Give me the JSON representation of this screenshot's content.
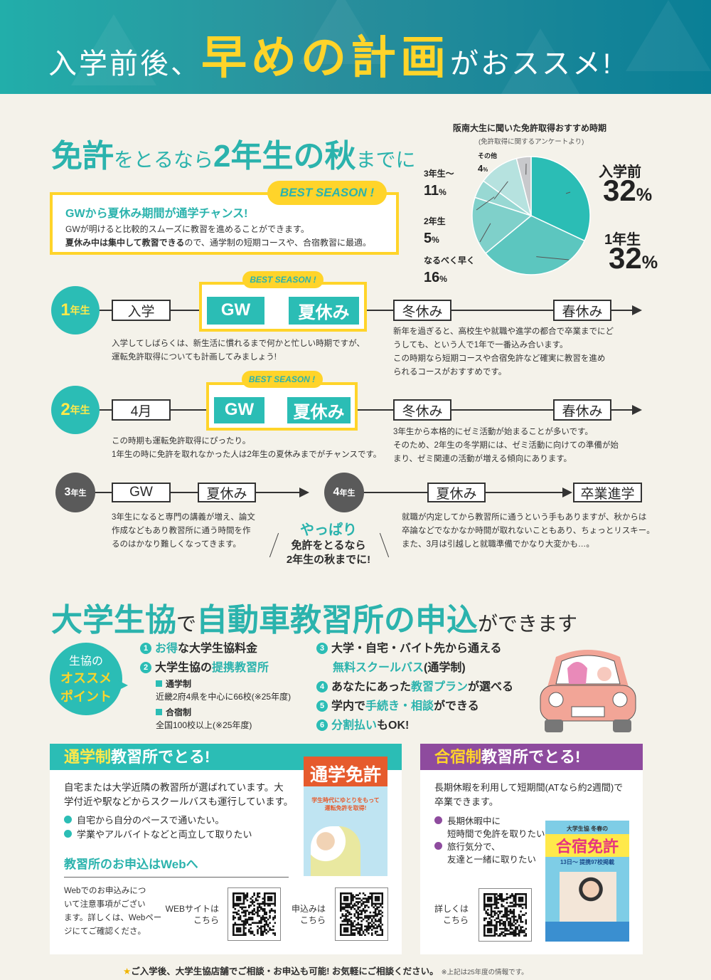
{
  "header": {
    "pre": "入学前後、",
    "highlight": "早めの計画",
    "post": "がおススメ!"
  },
  "section1": {
    "title_parts": [
      "免許",
      "をとるなら",
      "2年生の秋",
      "までに"
    ],
    "best_box": {
      "badge": "BEST SEASON !",
      "headline": "GWから夏休み期間が通学チャンス!",
      "line1": "GWが明けると比較的スムーズに教習を進めることができます。",
      "line2_bold": "夏休み中は集中して教習できる",
      "line2_rest": "ので、通学制の短期コースや、合宿教習に最適。"
    }
  },
  "chart_data": {
    "type": "pie",
    "title": "阪南大生に聞いた免許取得おすすめ時期",
    "subtitle": "(免許取得に関するアンケートより)",
    "unit": "%",
    "slices": [
      {
        "label": "入学前",
        "value": 32,
        "color": "#2bbdb5"
      },
      {
        "label": "1年生",
        "value": 32,
        "color": "#5cc6bf"
      },
      {
        "label": "なるべく早く",
        "value": 16,
        "color": "#7fd0ca"
      },
      {
        "label": "2年生",
        "value": 5,
        "color": "#98d8d3"
      },
      {
        "label": "3年生〜",
        "value": 11,
        "color": "#b6e2df"
      },
      {
        "label": "その他",
        "value": 4,
        "color": "#c8c9cc"
      }
    ]
  },
  "timeline": {
    "best_badge": "BEST SEASON !",
    "year1": {
      "num": "1",
      "suffix": "年生",
      "items": [
        "入学",
        "GW",
        "夏休み",
        "冬休み",
        "春休み"
      ],
      "note_left": [
        "入学してしばらくは、新生活に慣れるまで何かと忙しい時期ですが、",
        "運転免許取得についても計画してみましょう!"
      ],
      "note_right": [
        "新年を過ぎると、高校生や就職や進学の都合で卒業までにど",
        "うしても、という人で1年で一番込み合います。",
        "この時期なら短期コースや合宿免許など確実に教習を進め",
        "られるコースがおすすめです。"
      ]
    },
    "year2": {
      "num": "2",
      "suffix": "年生",
      "items": [
        "4月",
        "GW",
        "夏休み",
        "冬休み",
        "春休み"
      ],
      "note_left": [
        "この時期も運転免許取得にぴったり。",
        "1年生の時に免許を取れなかった人は2年生の夏休みまでがチャンスです。"
      ],
      "note_right": [
        "3年生から本格的にゼミ活動が始まることが多いです。",
        "そのため、2年生の冬学期には、ゼミ活動に向けての準備が始",
        "まり、ゼミ関連の活動が増える傾向にあります。"
      ]
    },
    "year3": {
      "num": "3",
      "suffix": "年生",
      "items": [
        "GW",
        "夏休み"
      ],
      "note": [
        "3年生になると専門の講義が増え、論文",
        "作成などもあり教習所に通う時間を作",
        "るのはかなり難しくなってきます。"
      ]
    },
    "year4": {
      "num": "4",
      "suffix": "年生",
      "items": [
        "夏休み",
        "卒業進学"
      ],
      "note": [
        "就職が内定してから教習所に通うという手もありますが、秋からは",
        "卒論などでなかなか時間が取れないこともあり、ちょっとリスキー。",
        "また、3月は引越しと就職準備でかなり大変かも…。"
      ]
    },
    "conclusion": {
      "accent": "やっぱり",
      "line1": "免許をとるなら",
      "line2": "2年生の秋までに!"
    }
  },
  "section2": {
    "title_parts": [
      "大学生協",
      "で",
      "自動車教習所の申込",
      "ができます"
    ],
    "bubble": {
      "line1": "生協の",
      "line2": "オススメ",
      "line3": "ポイント"
    },
    "points": [
      {
        "num": "1",
        "accent": "お得",
        "rest": "な大学生協料金"
      },
      {
        "num": "2",
        "pre": "大学生協の",
        "accent": "提携教習所"
      },
      {
        "num": "3",
        "pre": "大学・自宅・バイト先から通える",
        "accent": "無料スクールバス",
        "rest": "(通学制)"
      },
      {
        "num": "4",
        "pre": "あなたにあった",
        "accent": "教習プラン",
        "rest": "が選べる"
      },
      {
        "num": "5",
        "pre": "学内で",
        "accent": "手続き・相談",
        "rest": "ができる"
      },
      {
        "num": "6",
        "accent": "分割払い",
        "rest": "もOK!"
      }
    ],
    "sub": [
      {
        "label": "通学制",
        "text": "近畿2府4県を中心に66校(※25年度)"
      },
      {
        "label": "合宿制",
        "text": "全国100校以上(※25年度)"
      }
    ]
  },
  "card_commute": {
    "title_accent": "通学制",
    "title_rest": "教習所でとる!",
    "desc": [
      "自宅または大学近隣の教習所が選ばれています。大",
      "学付近や駅などからスクールバスも運行しています。"
    ],
    "bullets": [
      "自宅から自分のペースで通いたい。",
      "学業やアルバイトなどと両立して取りたい"
    ],
    "web_heading": "教習所のお申込はWebへ",
    "web_note": [
      "Webでのお申込みにつ",
      "いて注意事項がござい",
      "ます。詳しくは、Webペー",
      "ジにてご確認くださ。"
    ],
    "qr1_label": [
      "WEBサイトは",
      "こちら"
    ],
    "qr2_label": [
      "申込みは",
      "こちら"
    ],
    "flyer_title": "通学免許",
    "flyer_tagline": "学生時代にゆとりをもって運転免許を取得!"
  },
  "card_camp": {
    "title_accent": "合宿制",
    "title_rest": "教習所でとる!",
    "desc": [
      "長期休暇を利用して短期間(ATなら約2週間)で",
      "卒業できます。"
    ],
    "bullets": [
      [
        "長期休暇中に",
        "短時間で免許を取りたい"
      ],
      [
        "旅行気分で、",
        "友達と一緒に取りたい"
      ]
    ],
    "qr_label": [
      "詳しくは",
      "こちら"
    ],
    "flyer_head": "大学生協 冬春の",
    "flyer_title": "合宿免許",
    "flyer_sub": "13日〜 提携97校掲載"
  },
  "footer": {
    "main": "ご入学後、大学生協店舗でご相談・お申込も可能! お気軽にご相談ください。",
    "note": "※上記は25年度の情報です。"
  },
  "colors": {
    "teal": "#2bbdb5",
    "yellow": "#ffd42a",
    "purple": "#8e4b9e",
    "grey_circle": "#5a5a5a",
    "background": "#f4f2ea"
  }
}
